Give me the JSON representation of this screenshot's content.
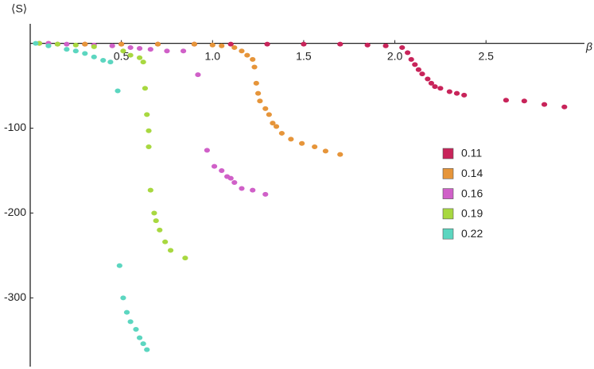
{
  "chart_data": {
    "type": "scatter",
    "y_label": "⟨S⟩",
    "x_label": "β",
    "xlim": [
      0,
      3.04
    ],
    "ylim": [
      -381,
      23
    ],
    "xticks": [
      0.5,
      {
        "value": 1,
        "label": "1.0"
      },
      1.5,
      {
        "value": 2,
        "label": "2.0"
      },
      2.5
    ],
    "yticks": [
      -100,
      -200,
      -300
    ],
    "legend": "right",
    "series": [
      {
        "name": "0.11",
        "color": "#c8245a",
        "x": [
          0.05,
          0.15,
          0.3,
          0.5,
          0.7,
          0.9,
          1.1,
          1.3,
          1.5,
          1.7,
          1.85,
          1.95,
          2.04,
          2.07,
          2.09,
          2.11,
          2.13,
          2.15,
          2.18,
          2.2,
          2.22,
          2.25,
          2.3,
          2.34,
          2.38,
          2.61,
          2.71,
          2.82,
          2.93
        ],
        "values": [
          0,
          -1,
          -1,
          -1,
          -1,
          -1,
          -1,
          -1,
          -1,
          -1,
          -2,
          -3,
          -5,
          -11,
          -19,
          -25,
          -31,
          -36,
          -42,
          -47,
          -51,
          -53,
          -57,
          -59,
          -61,
          -67,
          -68,
          -72,
          -75
        ]
      },
      {
        "name": "0.14",
        "color": "#e6953a",
        "x": [
          0.1,
          0.3,
          0.5,
          0.7,
          0.9,
          1.0,
          1.05,
          1.12,
          1.16,
          1.19,
          1.22,
          1.23,
          1.24,
          1.25,
          1.26,
          1.29,
          1.31,
          1.33,
          1.35,
          1.38,
          1.43,
          1.49,
          1.56,
          1.62,
          1.7
        ],
        "values": [
          0,
          -1,
          -1,
          -1,
          -1,
          -2,
          -3,
          -5,
          -9,
          -14,
          -19,
          -28,
          -47,
          -59,
          -68,
          -77,
          -84,
          -94,
          -98,
          -106,
          -113,
          -118,
          -122,
          -127,
          -131
        ]
      },
      {
        "name": "0.16",
        "color": "#d060c8",
        "x": [
          0.1,
          0.2,
          0.35,
          0.45,
          0.55,
          0.6,
          0.66,
          0.75,
          0.84,
          0.92,
          0.97,
          1.01,
          1.05,
          1.08,
          1.1,
          1.12,
          1.16,
          1.22,
          1.29
        ],
        "values": [
          0,
          -1,
          -2,
          -3,
          -5,
          -6,
          -7,
          -9,
          -9,
          -37,
          -126,
          -145,
          -150,
          -157,
          -159,
          -164,
          -171,
          -173,
          -178
        ]
      },
      {
        "name": "0.19",
        "color": "#a8d840",
        "x": [
          0.05,
          0.15,
          0.25,
          0.35,
          0.51,
          0.55,
          0.6,
          0.62,
          0.63,
          0.64,
          0.65,
          0.65,
          0.66,
          0.68,
          0.69,
          0.71,
          0.74,
          0.77,
          0.85
        ],
        "values": [
          0,
          -1,
          -2,
          -4,
          -9,
          -14,
          -17,
          -22,
          -53,
          -84,
          -103,
          -122,
          -173,
          -200,
          -209,
          -220,
          -234,
          -244,
          -253
        ]
      },
      {
        "name": "0.22",
        "color": "#5cd6c0",
        "x": [
          0.03,
          0.1,
          0.2,
          0.25,
          0.3,
          0.35,
          0.4,
          0.44,
          0.48,
          0.49,
          0.51,
          0.53,
          0.55,
          0.58,
          0.6,
          0.62,
          0.64
        ],
        "values": [
          0,
          -3,
          -7,
          -9,
          -12,
          -16,
          -20,
          -22,
          -56,
          -262,
          -300,
          -317,
          -328,
          -337,
          -347,
          -354,
          -361
        ]
      }
    ]
  }
}
